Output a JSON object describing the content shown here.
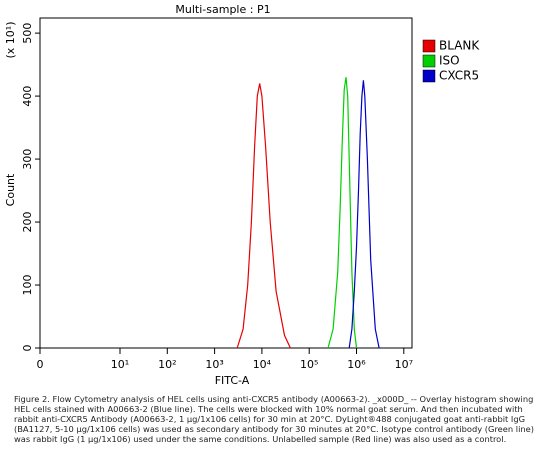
{
  "chart_data": {
    "type": "line",
    "title": "Multi-sample : P1",
    "xlabel": "FITC-A",
    "ylabel": "Count",
    "ymultiplier": "(x 10¹)",
    "xlim": [
      0,
      15000000
    ],
    "ylim": [
      0,
      524
    ],
    "xticks": [
      0,
      {
        "value": 10,
        "label": "10¹"
      },
      {
        "value": 100,
        "label": "10²"
      },
      {
        "value": 1000,
        "label": "10³"
      },
      {
        "value": 10000,
        "label": "10⁴"
      },
      {
        "value": 100000,
        "label": "10⁵"
      },
      {
        "value": 1000000,
        "label": "10⁶"
      },
      {
        "value": 10000000,
        "label": "10⁷"
      }
    ],
    "yticks": [
      0,
      100,
      200,
      300,
      400,
      500
    ],
    "legend": "right",
    "series": [
      {
        "name": "BLANK",
        "color": "#e60000",
        "x": [
          3000,
          4000,
          5000,
          6000,
          7000,
          8000,
          9000,
          10000,
          12000,
          15000,
          20000,
          30000,
          40000
        ],
        "values": [
          0,
          30,
          100,
          200,
          320,
          400,
          420,
          400,
          320,
          200,
          90,
          20,
          0
        ]
      },
      {
        "name": "ISO",
        "color": "#00d000",
        "x": [
          250000,
          320000,
          400000,
          450000,
          500000,
          550000,
          600000,
          650000,
          700000,
          800000,
          900000,
          1000000
        ],
        "values": [
          0,
          30,
          120,
          220,
          330,
          410,
          430,
          400,
          300,
          120,
          30,
          0
        ]
      },
      {
        "name": "CXCR5",
        "color": "#0000c8",
        "x": [
          700000,
          800000,
          900000,
          1000000,
          1100000,
          1200000,
          1300000,
          1400000,
          1500000,
          1700000,
          2000000,
          2500000,
          3000000
        ],
        "values": [
          0,
          30,
          90,
          160,
          250,
          340,
          400,
          425,
          400,
          300,
          140,
          30,
          0
        ]
      }
    ]
  },
  "caption": "Figure 2. Flow Cytometry analysis of HEL cells using anti-CXCR5 antibody (A00663-2). _x000D_ -- Overlay histogram showing HEL cells stained with A00663-2 (Blue line). The cells were blocked with 10% normal goat serum. And then incubated with rabbit anti-CXCR5 Antibody (A00663-2, 1 µg/1x106 cells) for 30 min at 20°C. DyLight®488 conjugated goat anti-rabbit IgG (BA1127, 5-10 µg/1x106 cells) was used as secondary antibody for 30 minutes at 20°C. Isotype control antibody (Green line) was rabbit IgG (1 µg/1x106) used under the same conditions. Unlabelled sample (Red line) was also used as a control."
}
